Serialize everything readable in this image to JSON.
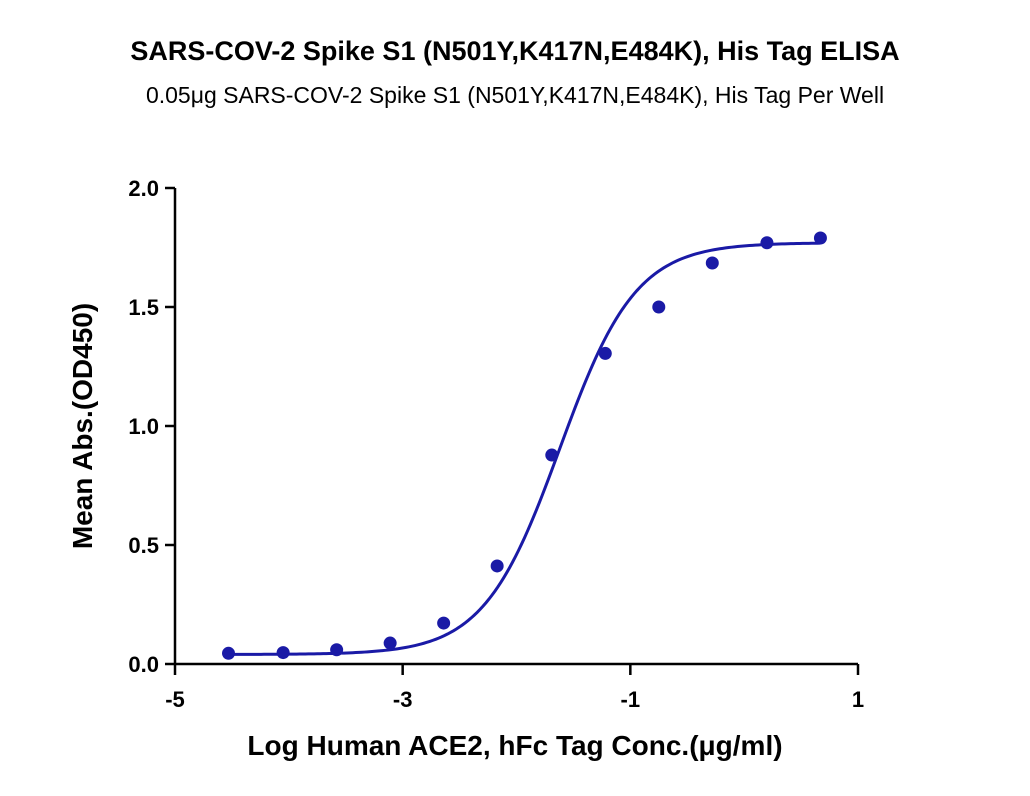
{
  "chart_data": {
    "type": "scatter",
    "title": "SARS-COV-2 Spike S1 (N501Y,K417N,E484K), His Tag ELISA",
    "subtitle": "0.05μg SARS-COV-2 Spike S1 (N501Y,K417N,E484K), His Tag Per Well",
    "xlabel": "Log Human ACE2, hFc Tag Conc.(μg/ml)",
    "ylabel": "Mean Abs.(OD450)",
    "xlim": [
      -5,
      1
    ],
    "ylim": [
      0,
      2
    ],
    "xticks": [
      -5,
      -3,
      -1,
      1
    ],
    "yticks": [
      0,
      0.5,
      1,
      1.5,
      2
    ],
    "xtick_labels": [
      "-5",
      "-3",
      "-1",
      "1"
    ],
    "ytick_labels": [
      "0.0",
      "0.5",
      "1.0",
      "1.5",
      "2.0"
    ],
    "grid": false,
    "color": "#1a1aa6",
    "series": [
      {
        "x": [
          -4.53,
          -4.05,
          -3.58,
          -3.11,
          -2.64,
          -2.17,
          -1.69,
          -1.22,
          -0.75,
          -0.28,
          0.2,
          0.67
        ],
        "values": [
          0.045,
          0.048,
          0.06,
          0.088,
          0.172,
          0.412,
          0.878,
          1.305,
          1.5,
          1.685,
          1.77,
          1.79
        ]
      }
    ],
    "fit": {
      "model": "4PL",
      "bottom": 0.04,
      "top": 1.77,
      "logEC50": -1.62,
      "hill": 1.3
    }
  }
}
